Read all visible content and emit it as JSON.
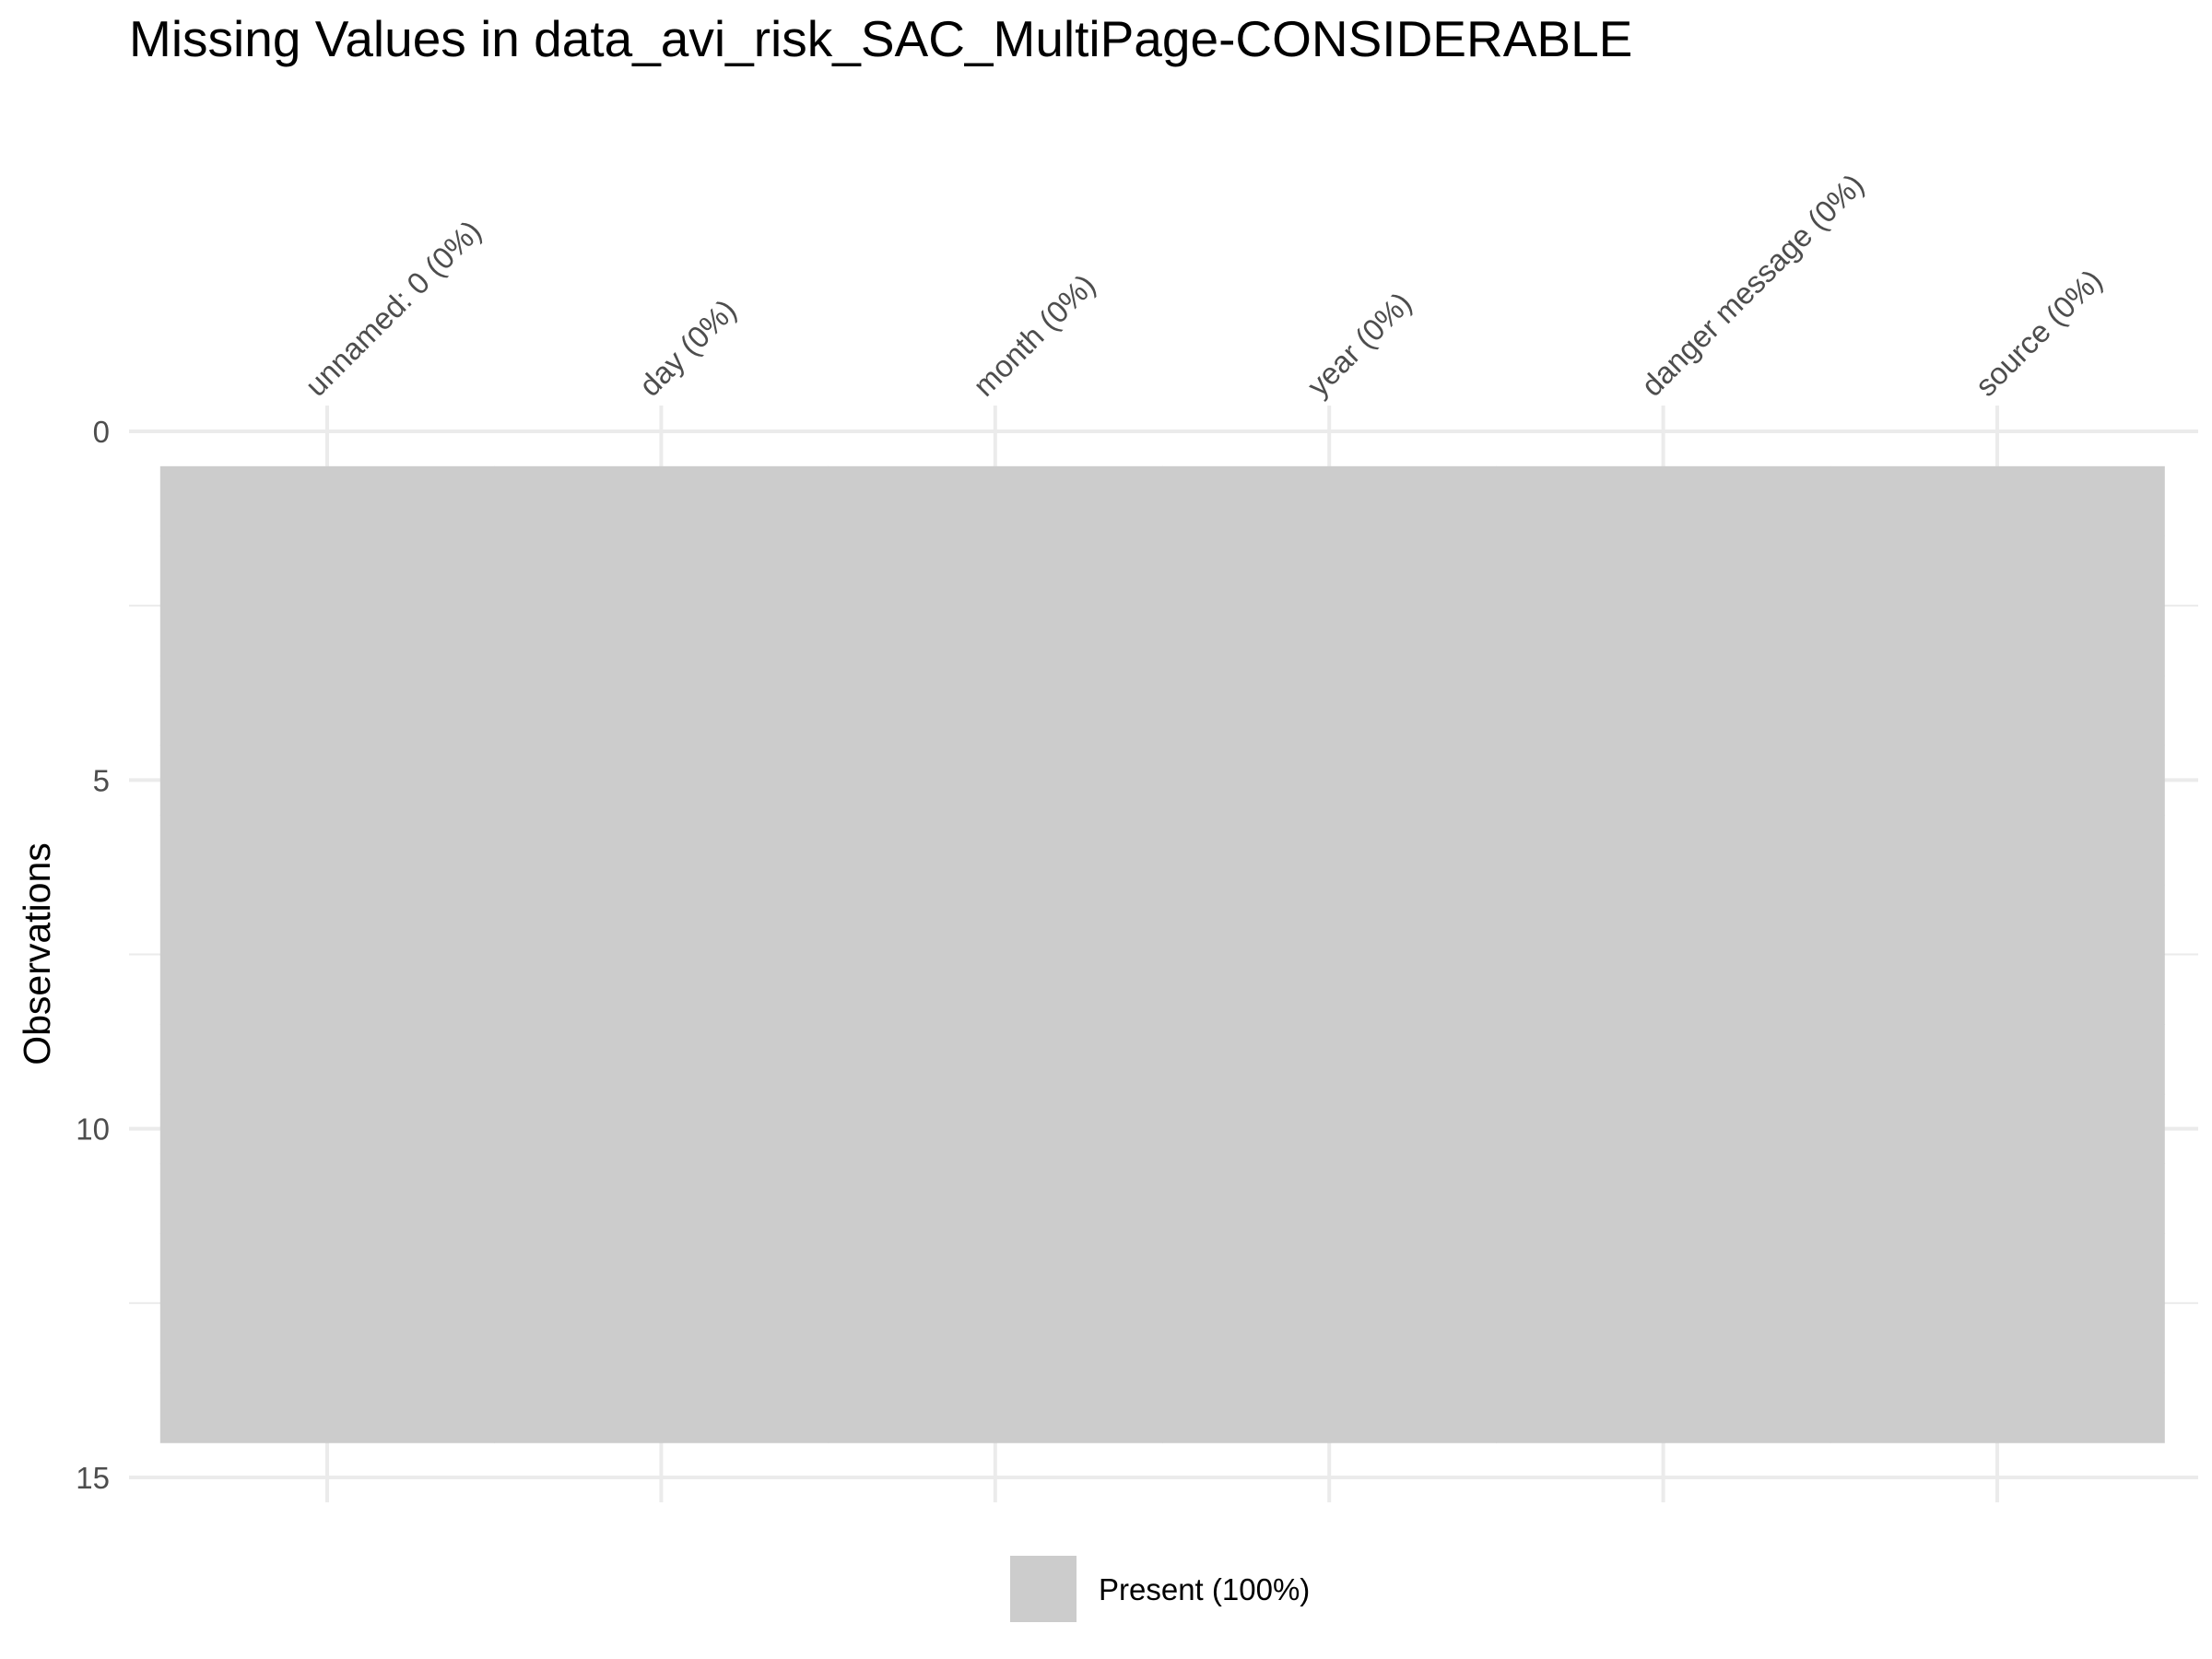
{
  "chart_data": {
    "type": "heatmap",
    "title": "Missing Values in data_avi_risk_SAC_MultiPage-CONSIDERABLE",
    "ylabel": "Observations",
    "xlabel": "",
    "columns": [
      "unnamed: 0 (0%)",
      "day (0%)",
      "month (0%)",
      "year (0%)",
      "danger message (0%)",
      "source (0%)"
    ],
    "observations": 14,
    "ylim": [
      0,
      15
    ],
    "y_ticks": [
      "0",
      "5",
      "10",
      "15"
    ],
    "y_reversed": true,
    "grid": true,
    "legend_position": "bottom",
    "cells": [
      {
        "state": "present",
        "value": 1.0,
        "rows": [
          1,
          14
        ],
        "columns": "all"
      }
    ],
    "legend": [
      {
        "label": "Present (100%)",
        "color": "#cccccc"
      }
    ],
    "colors": {
      "present": "#cccccc",
      "grid": "#ebebeb",
      "background": "#ffffff"
    }
  }
}
